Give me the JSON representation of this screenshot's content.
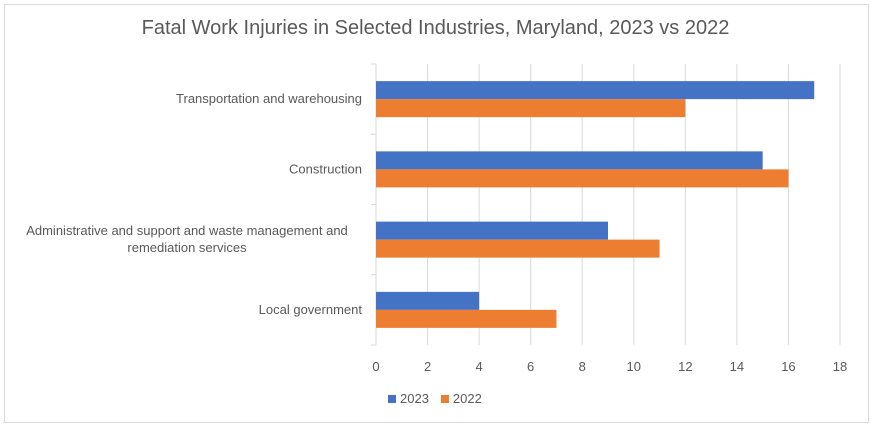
{
  "chart_data": {
    "type": "bar",
    "orientation": "horizontal",
    "title": "Fatal Work Injuries in Selected Industries, Maryland, 2023 vs 2022",
    "xlabel": "",
    "ylabel": "",
    "categories": [
      "Transportation and warehousing",
      "Construction",
      "Administrative and support and waste management and remediation services",
      "Local government"
    ],
    "category_label_lines": [
      [
        "Transportation and warehousing"
      ],
      [
        "Construction"
      ],
      [
        "Administrative and support and waste management and",
        "remediation services"
      ],
      [
        "Local government"
      ]
    ],
    "series": [
      {
        "name": "2023",
        "color": "#4472c4",
        "values": [
          17,
          15,
          9,
          4
        ]
      },
      {
        "name": "2022",
        "color": "#ed7d31",
        "values": [
          12,
          16,
          11,
          7
        ]
      }
    ],
    "xlim": [
      0,
      18
    ],
    "xticks": [
      0,
      2,
      4,
      6,
      8,
      10,
      12,
      14,
      16,
      18
    ],
    "grid": true,
    "legend": "bottom"
  }
}
